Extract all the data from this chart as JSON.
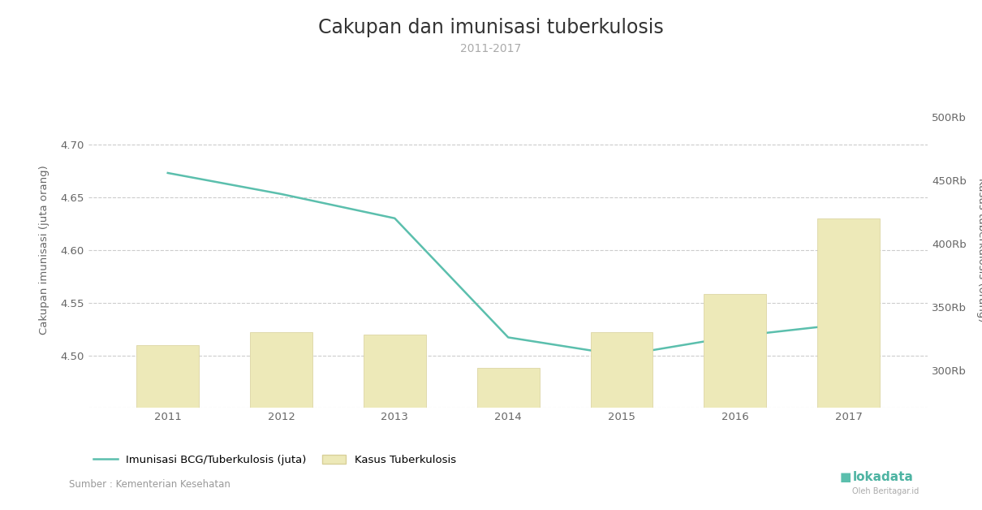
{
  "title": "Cakupan dan imunisasi tuberkulosis",
  "subtitle": "2011-2017",
  "years": [
    2011,
    2012,
    2013,
    2014,
    2015,
    2016,
    2017
  ],
  "line_values": [
    4.673,
    4.653,
    4.63,
    4.517,
    4.5,
    4.518,
    4.53
  ],
  "bar_values": [
    320000,
    330000,
    328000,
    302000,
    330000,
    360000,
    420000
  ],
  "left_ylim": [
    4.45,
    4.75
  ],
  "left_yticks": [
    4.5,
    4.55,
    4.6,
    4.65,
    4.7
  ],
  "right_ylim": [
    270000,
    520000
  ],
  "right_yticks": [
    300000,
    350000,
    400000,
    450000,
    500000
  ],
  "right_yticklabels": [
    "300Rb",
    "350Rb",
    "400Rb",
    "450Rb",
    "500Rb"
  ],
  "left_ylabel": "Cakupan imunisasi (juta orang)",
  "right_ylabel": "Kasus tuberkulosis (orang)",
  "line_color": "#5bbfad",
  "bar_color": "#ede9b8",
  "bar_edge_color": "#d8d099",
  "background_color": "#ffffff",
  "grid_color": "#cccccc",
  "legend_line_label": "Imunisasi BCG/Tuberkulosis (juta)",
  "legend_bar_label": "Kasus Tuberkulosis",
  "source_text": "Sumber : Kementerian Kesehatan",
  "title_fontsize": 17,
  "subtitle_fontsize": 10,
  "axis_label_fontsize": 9.5,
  "tick_fontsize": 9.5,
  "legend_fontsize": 9.5
}
